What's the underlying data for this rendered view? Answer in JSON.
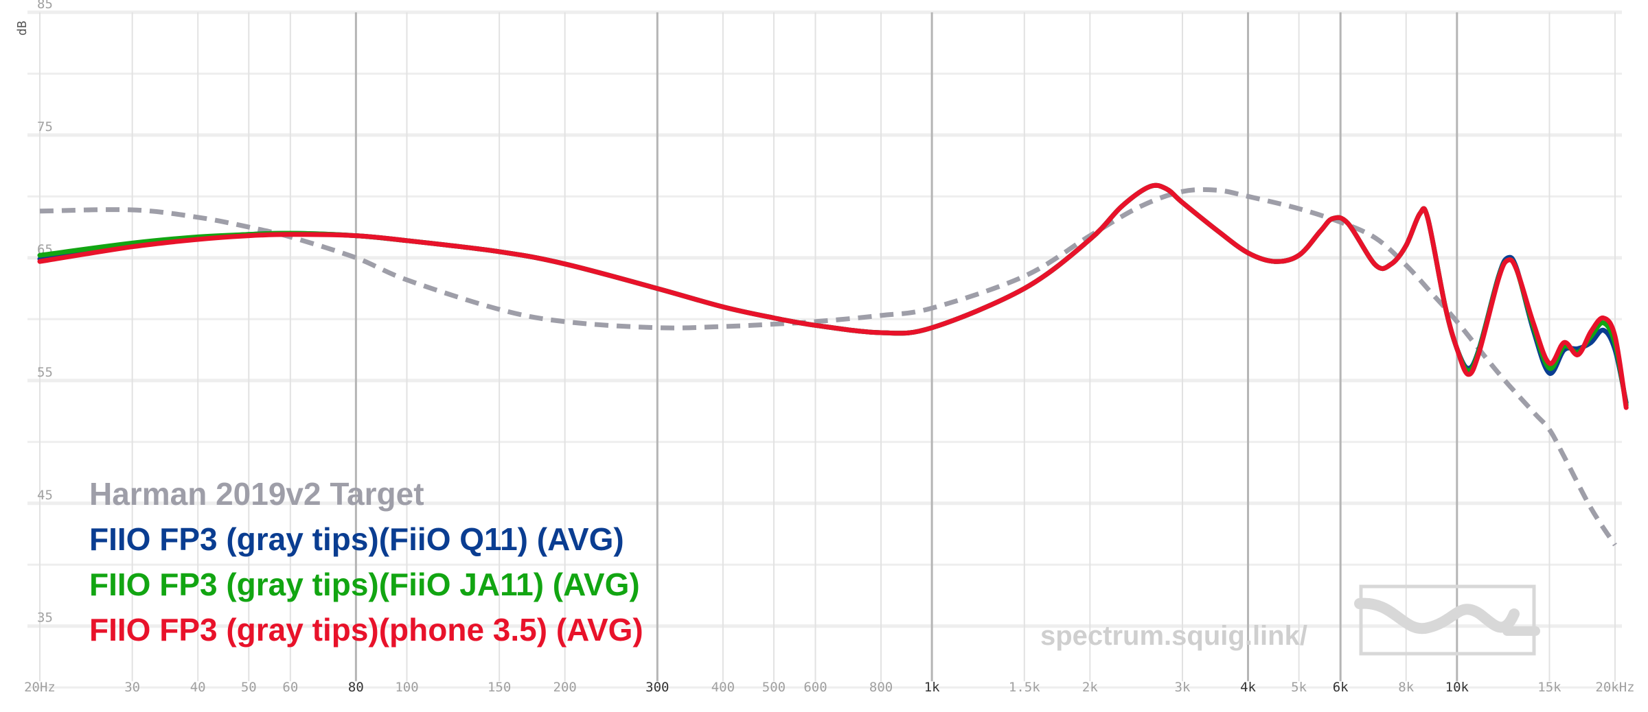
{
  "chart_data": {
    "type": "line",
    "ylabel": "dB",
    "xlabel": "",
    "x_scale": "log",
    "xlim": [
      20,
      20000
    ],
    "ylim": [
      28,
      86
    ],
    "y_ticks": [
      35,
      45,
      55,
      65,
      75,
      85
    ],
    "x_ticks": [
      {
        "value": 20,
        "label": "20Hz",
        "major": false
      },
      {
        "value": 30,
        "label": "30",
        "major": false
      },
      {
        "value": 40,
        "label": "40",
        "major": false
      },
      {
        "value": 50,
        "label": "50",
        "major": false
      },
      {
        "value": 60,
        "label": "60",
        "major": false
      },
      {
        "value": 80,
        "label": "80",
        "major": true
      },
      {
        "value": 100,
        "label": "100",
        "major": false
      },
      {
        "value": 150,
        "label": "150",
        "major": false
      },
      {
        "value": 200,
        "label": "200",
        "major": false
      },
      {
        "value": 300,
        "label": "300",
        "major": true
      },
      {
        "value": 400,
        "label": "400",
        "major": false
      },
      {
        "value": 500,
        "label": "500",
        "major": false
      },
      {
        "value": 600,
        "label": "600",
        "major": false
      },
      {
        "value": 800,
        "label": "800",
        "major": false
      },
      {
        "value": 1000,
        "label": "1k",
        "major": true
      },
      {
        "value": 1500,
        "label": "1.5k",
        "major": false
      },
      {
        "value": 2000,
        "label": "2k",
        "major": false
      },
      {
        "value": 3000,
        "label": "3k",
        "major": false
      },
      {
        "value": 4000,
        "label": "4k",
        "major": true
      },
      {
        "value": 5000,
        "label": "5k",
        "major": false
      },
      {
        "value": 6000,
        "label": "6k",
        "major": true
      },
      {
        "value": 8000,
        "label": "8k",
        "major": false
      },
      {
        "value": 10000,
        "label": "10k",
        "major": true
      },
      {
        "value": 15000,
        "label": "15k",
        "major": false
      },
      {
        "value": 20000,
        "label": "20kHz",
        "major": false
      }
    ],
    "grid": true,
    "legend_position": "bottom-left",
    "series": [
      {
        "name": "Harman 2019v2 Target",
        "color": "#9e9ea8",
        "dashed": true,
        "points": [
          [
            20,
            68.8
          ],
          [
            30,
            68.9
          ],
          [
            40,
            68.3
          ],
          [
            50,
            67.5
          ],
          [
            60,
            66.7
          ],
          [
            80,
            65.0
          ],
          [
            100,
            63.2
          ],
          [
            150,
            60.8
          ],
          [
            200,
            59.8
          ],
          [
            300,
            59.3
          ],
          [
            400,
            59.4
          ],
          [
            500,
            59.6
          ],
          [
            600,
            59.8
          ],
          [
            800,
            60.3
          ],
          [
            1000,
            60.9
          ],
          [
            1500,
            63.5
          ],
          [
            2000,
            66.8
          ],
          [
            2500,
            69.2
          ],
          [
            3000,
            70.4
          ],
          [
            3500,
            70.5
          ],
          [
            4000,
            70.0
          ],
          [
            5000,
            69.0
          ],
          [
            6000,
            67.9
          ],
          [
            7000,
            66.6
          ],
          [
            8000,
            64.4
          ],
          [
            9000,
            62.0
          ],
          [
            10000,
            59.8
          ],
          [
            12000,
            55.6
          ],
          [
            14000,
            52.4
          ],
          [
            15000,
            51.0
          ],
          [
            16000,
            48.8
          ],
          [
            18000,
            44.6
          ],
          [
            20000,
            41.6
          ]
        ]
      },
      {
        "name": "FIIO FP3 (gray tips)(FiiO Q11) (AVG)",
        "color": "#0a3d91",
        "dashed": false,
        "points": [
          [
            20,
            64.9
          ],
          [
            30,
            66.0
          ],
          [
            40,
            66.6
          ],
          [
            50,
            66.9
          ],
          [
            60,
            67.0
          ],
          [
            80,
            66.8
          ],
          [
            100,
            66.4
          ],
          [
            150,
            65.5
          ],
          [
            200,
            64.5
          ],
          [
            300,
            62.5
          ],
          [
            400,
            61.0
          ],
          [
            500,
            60.1
          ],
          [
            600,
            59.5
          ],
          [
            800,
            58.9
          ],
          [
            1000,
            59.3
          ],
          [
            1500,
            62.5
          ],
          [
            2000,
            66.5
          ],
          [
            2300,
            69.2
          ],
          [
            2600,
            70.8
          ],
          [
            2800,
            70.6
          ],
          [
            3000,
            69.5
          ],
          [
            3500,
            67.2
          ],
          [
            4000,
            65.4
          ],
          [
            4500,
            64.7
          ],
          [
            5000,
            65.2
          ],
          [
            5500,
            67.2
          ],
          [
            5800,
            68.2
          ],
          [
            6200,
            67.8
          ],
          [
            7000,
            64.4
          ],
          [
            7500,
            64.5
          ],
          [
            8000,
            66.0
          ],
          [
            8500,
            68.6
          ],
          [
            8800,
            68.2
          ],
          [
            9500,
            61.0
          ],
          [
            10000,
            57.6
          ],
          [
            10500,
            56.0
          ],
          [
            11000,
            57.5
          ],
          [
            12000,
            63.5
          ],
          [
            12500,
            65.0
          ],
          [
            13000,
            64.1
          ],
          [
            14000,
            59.0
          ],
          [
            15000,
            55.6
          ],
          [
            16000,
            57.5
          ],
          [
            17000,
            57.6
          ],
          [
            18000,
            58.1
          ],
          [
            19000,
            59.1
          ],
          [
            20000,
            57.5
          ],
          [
            21000,
            53.2
          ]
        ]
      },
      {
        "name": "FIIO FP3 (gray tips)(FiiO JA11) (AVG)",
        "color": "#12a512",
        "dashed": false,
        "points": [
          [
            20,
            65.2
          ],
          [
            30,
            66.2
          ],
          [
            40,
            66.7
          ],
          [
            50,
            66.9
          ],
          [
            60,
            67.0
          ],
          [
            80,
            66.8
          ],
          [
            100,
            66.4
          ],
          [
            150,
            65.5
          ],
          [
            200,
            64.5
          ],
          [
            300,
            62.5
          ],
          [
            400,
            61.0
          ],
          [
            500,
            60.1
          ],
          [
            600,
            59.5
          ],
          [
            800,
            58.9
          ],
          [
            1000,
            59.3
          ],
          [
            1500,
            62.5
          ],
          [
            2000,
            66.5
          ],
          [
            2300,
            69.2
          ],
          [
            2600,
            70.8
          ],
          [
            2800,
            70.6
          ],
          [
            3000,
            69.5
          ],
          [
            3500,
            67.2
          ],
          [
            4000,
            65.4
          ],
          [
            4500,
            64.7
          ],
          [
            5000,
            65.2
          ],
          [
            5500,
            67.2
          ],
          [
            5800,
            68.2
          ],
          [
            6200,
            67.8
          ],
          [
            7000,
            64.4
          ],
          [
            7500,
            64.5
          ],
          [
            8000,
            66.0
          ],
          [
            8500,
            68.6
          ],
          [
            8800,
            68.2
          ],
          [
            9500,
            61.0
          ],
          [
            10000,
            57.6
          ],
          [
            10500,
            55.8
          ],
          [
            11000,
            57.4
          ],
          [
            12000,
            63.4
          ],
          [
            12500,
            64.8
          ],
          [
            13000,
            64.0
          ],
          [
            14000,
            59.3
          ],
          [
            15000,
            56.0
          ],
          [
            16000,
            57.8
          ],
          [
            17000,
            57.3
          ],
          [
            18000,
            58.6
          ],
          [
            19000,
            59.7
          ],
          [
            20000,
            58.0
          ],
          [
            21000,
            53.0
          ]
        ]
      },
      {
        "name": "FIIO FP3 (gray tips)(phone 3.5) (AVG)",
        "color": "#e8122a",
        "dashed": false,
        "points": [
          [
            20,
            64.7
          ],
          [
            30,
            65.9
          ],
          [
            40,
            66.5
          ],
          [
            50,
            66.8
          ],
          [
            60,
            66.9
          ],
          [
            80,
            66.8
          ],
          [
            100,
            66.4
          ],
          [
            150,
            65.5
          ],
          [
            200,
            64.5
          ],
          [
            300,
            62.5
          ],
          [
            400,
            61.0
          ],
          [
            500,
            60.1
          ],
          [
            600,
            59.5
          ],
          [
            800,
            58.9
          ],
          [
            1000,
            59.3
          ],
          [
            1500,
            62.5
          ],
          [
            2000,
            66.5
          ],
          [
            2300,
            69.2
          ],
          [
            2600,
            70.8
          ],
          [
            2800,
            70.6
          ],
          [
            3000,
            69.5
          ],
          [
            3500,
            67.2
          ],
          [
            4000,
            65.4
          ],
          [
            4500,
            64.7
          ],
          [
            5000,
            65.2
          ],
          [
            5500,
            67.2
          ],
          [
            5800,
            68.2
          ],
          [
            6200,
            67.8
          ],
          [
            7000,
            64.4
          ],
          [
            7500,
            64.5
          ],
          [
            8000,
            66.0
          ],
          [
            8500,
            68.6
          ],
          [
            8800,
            68.2
          ],
          [
            9500,
            61.0
          ],
          [
            10000,
            57.6
          ],
          [
            10500,
            55.5
          ],
          [
            11000,
            57.2
          ],
          [
            12000,
            63.3
          ],
          [
            12500,
            64.8
          ],
          [
            13000,
            64.0
          ],
          [
            14000,
            59.6
          ],
          [
            15000,
            56.4
          ],
          [
            16000,
            58.1
          ],
          [
            17000,
            57.1
          ],
          [
            18000,
            59.0
          ],
          [
            19000,
            60.1
          ],
          [
            20000,
            58.6
          ],
          [
            21000,
            52.8
          ]
        ]
      }
    ],
    "watermark": "spectrum.squig.link/"
  }
}
